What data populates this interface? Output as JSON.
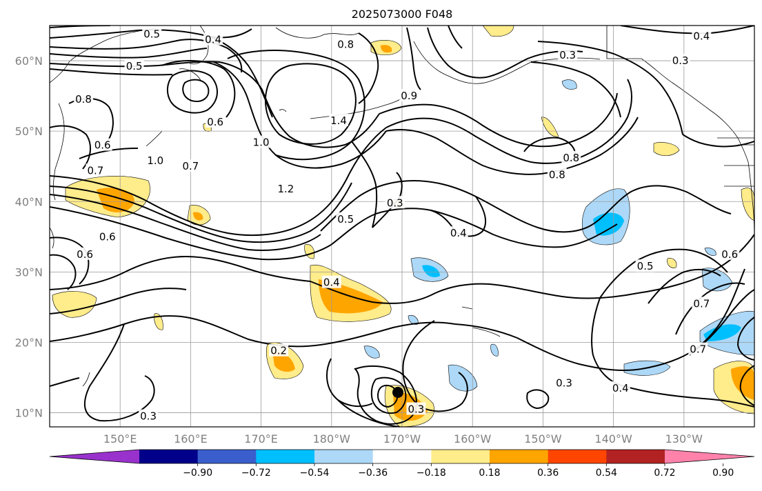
{
  "title": "2025073000 F048",
  "lat_ticks": [
    {
      "value": 60,
      "label": "60°N"
    },
    {
      "value": 50,
      "label": "50°N"
    },
    {
      "value": 40,
      "label": "40°N"
    },
    {
      "value": 30,
      "label": "30°N"
    },
    {
      "value": 20,
      "label": "20°N"
    },
    {
      "value": 10,
      "label": "10°N"
    }
  ],
  "lon_ticks": [
    {
      "value": 150,
      "label": "150°E"
    },
    {
      "value": 160,
      "label": "160°E"
    },
    {
      "value": 170,
      "label": "170°E"
    },
    {
      "value": 180,
      "label": "180°W"
    },
    {
      "value": 190,
      "label": "170°W"
    },
    {
      "value": 200,
      "label": "160°W"
    },
    {
      "value": 210,
      "label": "150°W"
    },
    {
      "value": 220,
      "label": "140°W"
    },
    {
      "value": 230,
      "label": "130°W"
    }
  ],
  "extent": {
    "lon_min": 140,
    "lon_max": 240,
    "lat_min": 8,
    "lat_max": 65
  },
  "colorbar": {
    "colors": [
      "#9932cc",
      "#00008b",
      "#3a5fcd",
      "#00bfff",
      "#add8f7",
      "#ffffff",
      "#ffec8b",
      "#ffa500",
      "#ff4500",
      "#b22222",
      "#ff82ab"
    ],
    "tick_labels": [
      "−0.90",
      "−0.72",
      "−0.54",
      "−0.36",
      "−0.18",
      "0.18",
      "0.36",
      "0.54",
      "0.72",
      "0.90"
    ]
  },
  "contour_labels": [
    {
      "text": "0.5",
      "lon": 154.5,
      "lat": 63.8
    },
    {
      "text": "0.4",
      "lon": 163.2,
      "lat": 63.0
    },
    {
      "text": "0.5",
      "lon": 152.0,
      "lat": 59.2
    },
    {
      "text": "0.8",
      "lon": 182.0,
      "lat": 62.3
    },
    {
      "text": "0.8",
      "lon": 144.8,
      "lat": 54.5
    },
    {
      "text": "0.7",
      "lon": 146.5,
      "lat": 44.4
    },
    {
      "text": "0.6",
      "lon": 147.5,
      "lat": 48.0
    },
    {
      "text": "0.6",
      "lon": 163.5,
      "lat": 51.3
    },
    {
      "text": "1.0",
      "lon": 155.0,
      "lat": 45.8
    },
    {
      "text": "0.7",
      "lon": 160.0,
      "lat": 45.0
    },
    {
      "text": "1.0",
      "lon": 170.0,
      "lat": 48.4
    },
    {
      "text": "1.2",
      "lon": 173.5,
      "lat": 41.8
    },
    {
      "text": "1.4",
      "lon": 181.0,
      "lat": 51.5
    },
    {
      "text": "0.3",
      "lon": 189.0,
      "lat": 39.8
    },
    {
      "text": "0.4",
      "lon": 198.0,
      "lat": 35.5
    },
    {
      "text": "0.6",
      "lon": 148.2,
      "lat": 35.0
    },
    {
      "text": "0.6",
      "lon": 145.0,
      "lat": 32.5
    },
    {
      "text": "0.4",
      "lon": 180.0,
      "lat": 28.5
    },
    {
      "text": "0.2",
      "lon": 172.5,
      "lat": 18.8
    },
    {
      "text": "0.3",
      "lon": 154.0,
      "lat": 9.5
    },
    {
      "text": "0.3",
      "lon": 192.0,
      "lat": 10.5
    },
    {
      "text": "0.3",
      "lon": 213.0,
      "lat": 14.2
    },
    {
      "text": "0.4",
      "lon": 221.0,
      "lat": 13.5
    },
    {
      "text": "0.7",
      "lon": 232.0,
      "lat": 19.0
    },
    {
      "text": "0.7",
      "lon": 232.5,
      "lat": 25.5
    },
    {
      "text": "0.5",
      "lon": 224.5,
      "lat": 30.8
    },
    {
      "text": "0.6",
      "lon": 236.5,
      "lat": 32.5
    },
    {
      "text": "0.8",
      "lon": 214.0,
      "lat": 46.2
    },
    {
      "text": "0.8",
      "lon": 212.0,
      "lat": 43.8
    },
    {
      "text": "0.3",
      "lon": 213.5,
      "lat": 60.8
    },
    {
      "text": "0.3",
      "lon": 229.5,
      "lat": 60.0
    },
    {
      "text": "0.4",
      "lon": 232.5,
      "lat": 63.5
    },
    {
      "text": "0.9",
      "lon": 191.0,
      "lat": 55.0
    },
    {
      "text": "0.5",
      "lon": 182.0,
      "lat": 37.5
    }
  ]
}
